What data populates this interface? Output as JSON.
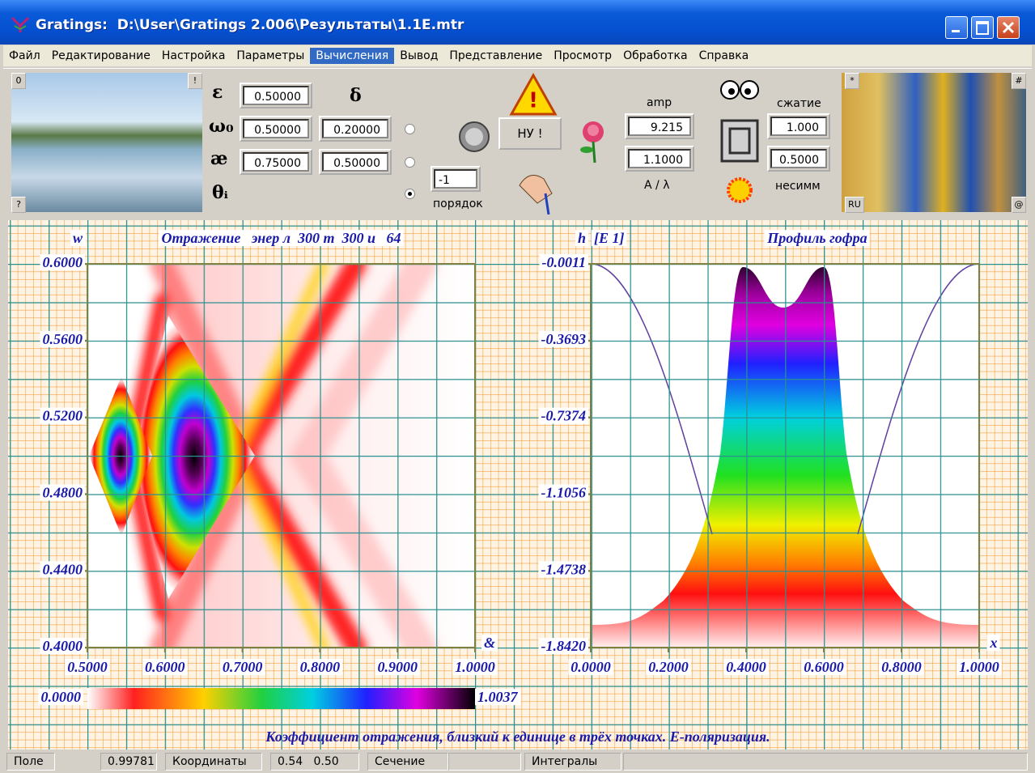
{
  "window": {
    "title": "Gratings:  D:\\User\\Gratings 2.006\\Результаты\\1.1E.mtr"
  },
  "menu": [
    "Файл",
    "Редактирование",
    "Настройка",
    "Параметры",
    "Вычисления",
    "Вывод",
    "Представление",
    "Просмотр",
    "Обработка",
    "Справка"
  ],
  "toolbar": {
    "image_buttons": [
      "0",
      "!",
      "?",
      "*",
      "#",
      "RU",
      "@"
    ],
    "symbols": {
      "epsilon": "ε",
      "omega": "ω₀",
      "kappa": "æ",
      "theta": "θᵢ",
      "delta": "δ"
    },
    "fields": {
      "epsilon": "0.50000",
      "omega0": "0.50000",
      "delta": "0.20000",
      "kappa": "0.75000",
      "kappa_delta": "0.50000",
      "order": "-1",
      "amp": "9.215",
      "ratio": "1.1000",
      "compression": "1.000",
      "asymmetry": "0.5000"
    },
    "labels": {
      "order": "порядок",
      "amp": "amp",
      "ratio": "A / λ",
      "compression": "сжатие",
      "asymmetry": "несимм"
    },
    "button": "НУ !"
  },
  "plots": [
    {
      "title": "Отражение   энер л  300 т  300 и   64",
      "ylabel": "w",
      "xlabel": "&",
      "xlim": [
        0.5,
        1.0
      ],
      "ylim": [
        0.4,
        0.6
      ],
      "xticks": [
        {
          "value": 0.5,
          "label": "0.5000"
        },
        {
          "value": 0.6,
          "label": "0.6000"
        },
        {
          "value": 0.7,
          "label": "0.7000"
        },
        {
          "value": 0.8,
          "label": "0.8000"
        },
        {
          "value": 0.9,
          "label": "0.9000"
        },
        {
          "value": 1.0,
          "label": "1.0000"
        }
      ],
      "yticks": [
        {
          "value": 0.6,
          "label": "0.6000"
        },
        {
          "value": 0.56,
          "label": "0.5600"
        },
        {
          "value": 0.52,
          "label": "0.5200"
        },
        {
          "value": 0.48,
          "label": "0.4800"
        },
        {
          "value": 0.44,
          "label": "0.4400"
        },
        {
          "value": 0.4,
          "label": "0.4000"
        }
      ]
    },
    {
      "title": "Профиль гофра",
      "ylabel": "h",
      "yunit": "[E 1]",
      "xlabel": "x",
      "xlim": [
        0,
        1
      ],
      "ylim": [
        -1.842,
        -0.0011
      ],
      "xticks": [
        {
          "value": 0,
          "label": "0.0000"
        },
        {
          "value": 0.2,
          "label": "0.2000"
        },
        {
          "value": 0.4,
          "label": "0.4000"
        },
        {
          "value": 0.6,
          "label": "0.6000"
        },
        {
          "value": 0.8,
          "label": "0.8000"
        },
        {
          "value": 1,
          "label": "1.0000"
        }
      ],
      "yticks": [
        {
          "value": -0.0011,
          "label": "-0.0011"
        },
        {
          "value": -0.3693,
          "label": "-0.3693"
        },
        {
          "value": -0.7374,
          "label": "-0.7374"
        },
        {
          "value": -1.1056,
          "label": "-1.1056"
        },
        {
          "value": -1.4738,
          "label": "-1.4738"
        },
        {
          "value": -1.842,
          "label": "-1.8420"
        }
      ]
    }
  ],
  "colorbar": {
    "min": {
      "value": 0,
      "label": "0.0000"
    },
    "max": {
      "value": 1.0037,
      "label": "1.0037"
    }
  },
  "caption": "Коэффициент отражения, близкий к единице в трёх точках. Е-поляризация.",
  "status": [
    {
      "label": "Поле",
      "value": "0.99781"
    },
    {
      "label": "Координаты",
      "value": "0.54   0.50"
    },
    {
      "label": "Сечение"
    },
    {
      "label": "Интегралы"
    }
  ]
}
